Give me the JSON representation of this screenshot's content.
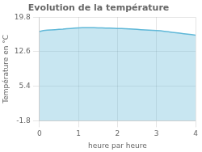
{
  "chart_data": {
    "type": "area",
    "title": "Evolution de la température",
    "xlabel": "heure par heure",
    "ylabel": "Température en °C",
    "x": [
      0.0,
      0.1,
      0.2,
      0.3,
      0.4,
      0.5,
      0.6,
      0.7,
      0.8,
      0.9,
      1.0,
      1.1,
      1.2,
      1.3,
      1.4,
      1.5,
      1.6,
      1.7,
      1.8,
      1.9,
      2.0,
      2.1,
      2.2,
      2.3,
      2.4,
      2.5,
      2.6,
      2.7,
      2.8,
      2.9,
      3.0,
      3.1,
      3.2,
      3.3,
      3.4,
      3.5,
      3.6,
      3.7,
      3.8,
      3.9,
      4.0
    ],
    "values": [
      16.8,
      17.0,
      17.1,
      17.15,
      17.2,
      17.25,
      17.3,
      17.4,
      17.45,
      17.5,
      17.55,
      17.6,
      17.62,
      17.62,
      17.6,
      17.58,
      17.55,
      17.52,
      17.5,
      17.48,
      17.45,
      17.42,
      17.38,
      17.35,
      17.3,
      17.25,
      17.2,
      17.15,
      17.1,
      17.05,
      17.0,
      16.95,
      16.85,
      16.75,
      16.65,
      16.55,
      16.45,
      16.35,
      16.25,
      16.15,
      16.05
    ],
    "color": "#60b8d8",
    "xlim": [
      0,
      4
    ],
    "xticks": [
      0,
      1,
      2,
      3,
      4
    ],
    "ylim": [
      -1.8,
      19.8
    ],
    "yticks": [
      -1.8,
      5.4,
      12.6,
      19.8
    ],
    "grid": true
  }
}
